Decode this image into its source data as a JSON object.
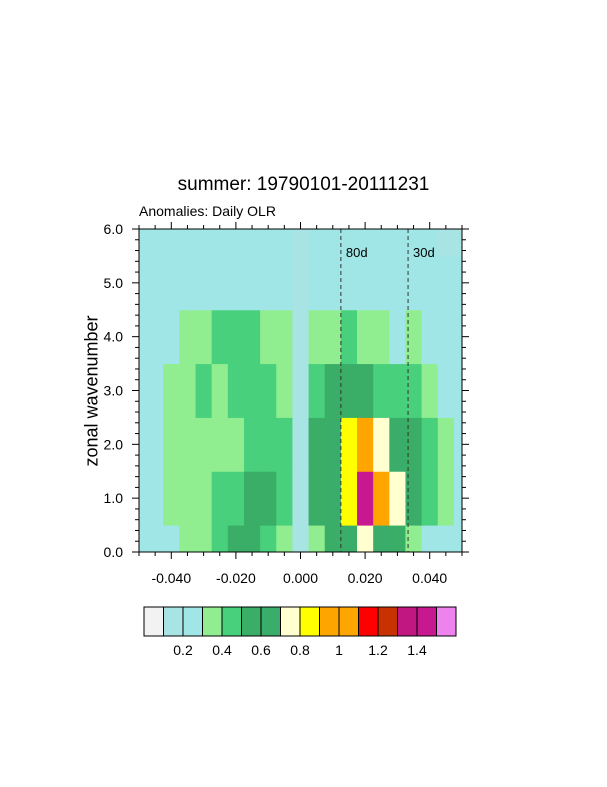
{
  "chart_data": {
    "type": "heatmap",
    "title": "summer: 19790101-20111231",
    "subtitle": "Anomalies: Daily OLR",
    "xlabel": "",
    "ylabel": "zonal wavenumber",
    "xlim": [
      -0.05,
      0.05
    ],
    "ylim": [
      0,
      6
    ],
    "x_ticks": [
      -0.04,
      -0.02,
      0.0,
      0.02,
      0.04
    ],
    "x_tick_labels": [
      "-0.040",
      "-0.020",
      "0.000",
      "0.020",
      "0.040"
    ],
    "y_ticks": [
      0,
      1,
      2,
      3,
      4,
      5,
      6
    ],
    "y_tick_labels": [
      "0.0",
      "1.0",
      "2.0",
      "3.0",
      "4.0",
      "5.0",
      "6.0"
    ],
    "reference_lines": [
      {
        "label": "80d",
        "x": 0.0125
      },
      {
        "label": "30d",
        "x": 0.0333
      }
    ],
    "colorbar": {
      "colors": [
        "#f2f2f2",
        "#a8e4e4",
        "#a0e6e6",
        "#90ee90",
        "#48d07c",
        "#3aad66",
        "#3aad6a",
        "#ffffd0",
        "#ffff00",
        "#ffa500",
        "#ffa500",
        "#ff0000",
        "#c83200",
        "#c01880",
        "#c81890",
        "#ee82ee"
      ],
      "labels": [
        "0.2",
        "0.4",
        "0.6",
        "0.8",
        "1",
        "1.2",
        "1.4"
      ],
      "label_after_box": [
        1,
        3,
        5,
        7,
        9,
        11,
        13
      ]
    },
    "wavenumbers": [
      0,
      1,
      2,
      3,
      4,
      5,
      6
    ],
    "frequencies": [
      -0.05,
      -0.045,
      -0.04,
      -0.035,
      -0.03,
      -0.025,
      -0.02,
      -0.015,
      -0.01,
      -0.005,
      0.0,
      0.005,
      0.01,
      0.015,
      0.02,
      0.025,
      0.03,
      0.035,
      0.04,
      0.045,
      0.05
    ],
    "power": [
      [
        0.2,
        0.25,
        0.25,
        0.32,
        0.38,
        0.45,
        0.5,
        0.52,
        0.48,
        0.3,
        0.1,
        0.35,
        0.55,
        0.65,
        0.7,
        0.6,
        0.5,
        0.35,
        0.25,
        0.2,
        0.2
      ],
      [
        0.2,
        0.25,
        0.32,
        0.38,
        0.35,
        0.4,
        0.48,
        0.55,
        0.58,
        0.45,
        0.1,
        0.5,
        0.68,
        0.88,
        1.45,
        1.05,
        0.78,
        0.62,
        0.45,
        0.38,
        0.25
      ],
      [
        0.2,
        0.25,
        0.35,
        0.38,
        0.38,
        0.32,
        0.38,
        0.42,
        0.48,
        0.42,
        0.1,
        0.5,
        0.62,
        0.82,
        1.0,
        0.72,
        0.68,
        0.52,
        0.4,
        0.3,
        0.25
      ],
      [
        0.2,
        0.25,
        0.32,
        0.38,
        0.42,
        0.35,
        0.4,
        0.42,
        0.4,
        0.38,
        0.1,
        0.4,
        0.5,
        0.55,
        0.58,
        0.48,
        0.45,
        0.42,
        0.3,
        0.25,
        0.2
      ],
      [
        0.2,
        0.2,
        0.25,
        0.3,
        0.38,
        0.45,
        0.42,
        0.42,
        0.35,
        0.3,
        0.1,
        0.3,
        0.38,
        0.4,
        0.38,
        0.3,
        0.28,
        0.35,
        0.22,
        0.2,
        0.2
      ],
      [
        0.2,
        0.2,
        0.2,
        0.2,
        0.22,
        0.25,
        0.25,
        0.25,
        0.2,
        0.2,
        0.1,
        0.2,
        0.25,
        0.25,
        0.22,
        0.22,
        0.2,
        0.2,
        0.2,
        0.2,
        0.2
      ],
      [
        0.2,
        0.2,
        0.2,
        0.2,
        0.2,
        0.2,
        0.2,
        0.2,
        0.2,
        0.2,
        0.12,
        0.2,
        0.2,
        0.2,
        0.2,
        0.2,
        0.2,
        0.2,
        0.2,
        0.15,
        0.1
      ]
    ]
  }
}
